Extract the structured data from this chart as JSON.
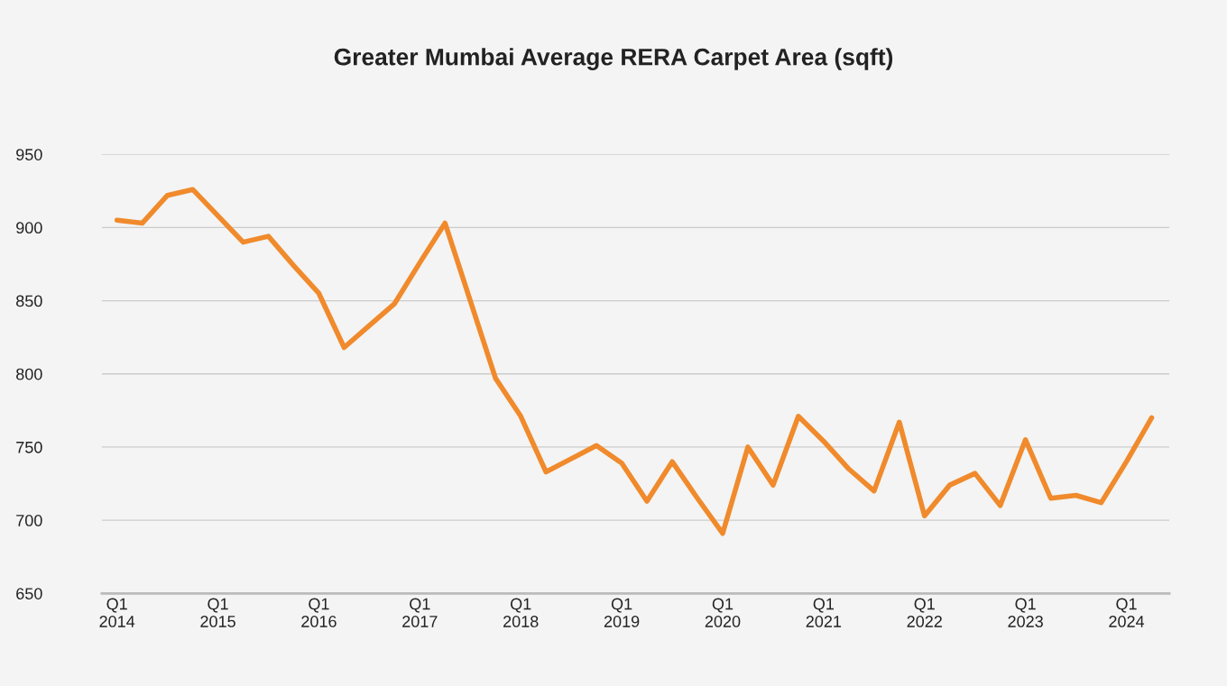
{
  "chart_data": {
    "type": "line",
    "title": "Greater Mumbai Average RERA Carpet Area (sqft)",
    "categories": [
      "Q1\n2014",
      null,
      null,
      null,
      "Q1\n2015",
      null,
      null,
      null,
      "Q1\n2016",
      null,
      null,
      null,
      "Q1\n2017",
      null,
      null,
      null,
      "Q1\n2018",
      null,
      null,
      null,
      "Q1\n2019",
      null,
      null,
      null,
      "Q1\n2020",
      null,
      null,
      null,
      "Q1\n2021",
      null,
      null,
      null,
      "Q1\n2022",
      null,
      null,
      null,
      "Q1\n2023",
      null,
      null,
      null,
      "Q1\n2024",
      null
    ],
    "series": [
      {
        "color": "#f08a2c",
        "values": [
          905,
          903,
          922,
          926,
          908,
          890,
          894,
          874,
          855,
          818,
          833,
          848,
          876,
          903,
          850,
          797,
          771,
          733,
          742,
          751,
          739,
          713,
          740,
          715,
          691,
          750,
          724,
          771,
          754,
          735,
          720,
          767,
          703,
          724,
          732,
          710,
          755,
          715,
          717,
          712,
          740,
          770
        ]
      }
    ],
    "ylim": [
      650,
      950
    ],
    "yticks": [
      650,
      700,
      750,
      800,
      850,
      900,
      950
    ],
    "grid": "y",
    "legend": false,
    "marker": "none",
    "line_style": "solid"
  }
}
